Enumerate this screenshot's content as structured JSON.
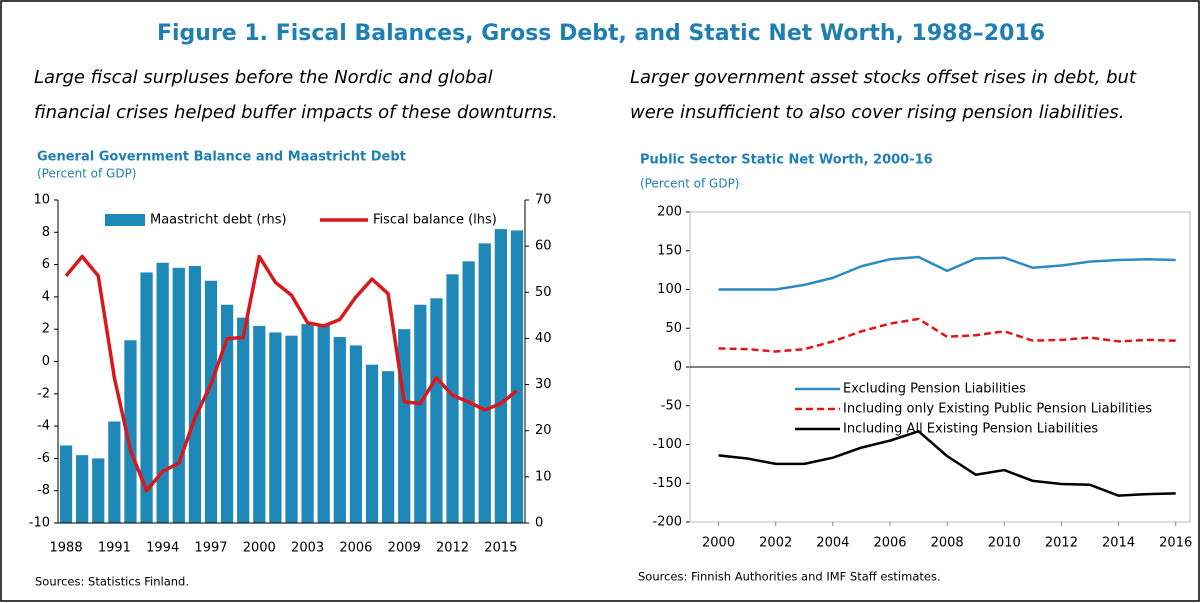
{
  "title": "Figure 1. Fiscal Balances, Gross Debt, and Static Net Worth, 1988–2016",
  "chart_data": [
    {
      "type": "bar",
      "caption": [
        "Large fiscal surpluses before the Nordic and global",
        "financial crises helped buffer impacts of these downturns."
      ],
      "title": "General Government Balance and Maastricht Debt",
      "subtitle": "(Percent of GDP)",
      "source": "Sources: Statistics Finland.",
      "categories": [
        "1988",
        null,
        null,
        "1991",
        null,
        null,
        "1994",
        null,
        null,
        "1997",
        null,
        null,
        "2000",
        null,
        null,
        "2003",
        null,
        null,
        "2006",
        null,
        null,
        "2009",
        null,
        null,
        "2012",
        null,
        null,
        "2015",
        null
      ],
      "series": [
        {
          "name": "Maastricht debt (rhs)",
          "type": "bar",
          "axis": "y2",
          "color": "#1e88b8",
          "values": [
            16.8,
            14.7,
            14.0,
            22.0,
            39.6,
            54.3,
            56.4,
            55.3,
            55.7,
            52.5,
            47.3,
            44.5,
            42.7,
            41.3,
            40.6,
            43.1,
            43.1,
            40.3,
            38.5,
            34.3,
            32.9,
            42.0,
            47.3,
            48.7,
            53.9,
            56.7,
            60.6,
            63.7,
            63.4
          ]
        },
        {
          "name": "Fiscal balance (lhs)",
          "type": "line",
          "axis": "y",
          "color": "#d9181e",
          "values": [
            5.3,
            6.5,
            5.3,
            -1.0,
            -5.5,
            -8.0,
            -6.8,
            -6.3,
            -3.5,
            -1.4,
            1.4,
            1.5,
            6.5,
            4.9,
            4.1,
            2.4,
            2.2,
            2.6,
            4.0,
            5.1,
            4.2,
            -2.5,
            -2.6,
            -1.0,
            -2.1,
            -2.5,
            -3.0,
            -2.6,
            -1.8
          ]
        }
      ],
      "ylim": [
        -10,
        10
      ],
      "yticks": [
        -10,
        -8,
        -6,
        -4,
        -2,
        0,
        2,
        4,
        6,
        8,
        10
      ],
      "y2lim": [
        0,
        70
      ],
      "y2ticks": [
        0,
        10,
        20,
        30,
        40,
        50,
        60,
        70
      ],
      "legend": "top"
    },
    {
      "type": "line",
      "caption": [
        "Larger government asset stocks offset rises in debt, but",
        "were insufficient to also cover rising pension liabilities."
      ],
      "title": "Public Sector Static Net Worth, 2000-16",
      "subtitle": "(Percent of GDP)",
      "source": "Sources: Finnish Authorities and IMF Staff estimates.",
      "x": [
        2000,
        2001,
        2002,
        2003,
        2004,
        2005,
        2006,
        2007,
        2008,
        2009,
        2010,
        2011,
        2012,
        2013,
        2014,
        2015,
        2016
      ],
      "series": [
        {
          "name": "Excluding Pension Liabilities",
          "color": "#2b8cc4",
          "dashed": false,
          "values": [
            100,
            100,
            100,
            106,
            115,
            130,
            139,
            142,
            124,
            140,
            141,
            128,
            131,
            136,
            138,
            139,
            138
          ]
        },
        {
          "name": "Including only Existing Public Pension Liabilities",
          "color": "#e3151b",
          "dashed": true,
          "values": [
            24,
            23,
            20,
            23,
            33,
            46,
            56,
            62,
            39,
            41,
            46,
            34,
            35,
            38,
            33,
            35,
            34
          ]
        },
        {
          "name": "Including All Existing Pension Liabilities",
          "color": "#000000",
          "dashed": false,
          "values": [
            -114,
            -118,
            -125,
            -125,
            -117,
            -104,
            -95,
            -83,
            -115,
            -139,
            -133,
            -147,
            -151,
            -152,
            -166,
            -164,
            -163
          ]
        }
      ],
      "xlim": [
        1999,
        2016.5
      ],
      "xticks": [
        2000,
        2002,
        2004,
        2006,
        2008,
        2010,
        2012,
        2014,
        2016
      ],
      "ylim": [
        -200,
        200
      ],
      "yticks": [
        -200,
        -150,
        -100,
        -50,
        0,
        50,
        100,
        150,
        200
      ],
      "legend": "center"
    }
  ]
}
